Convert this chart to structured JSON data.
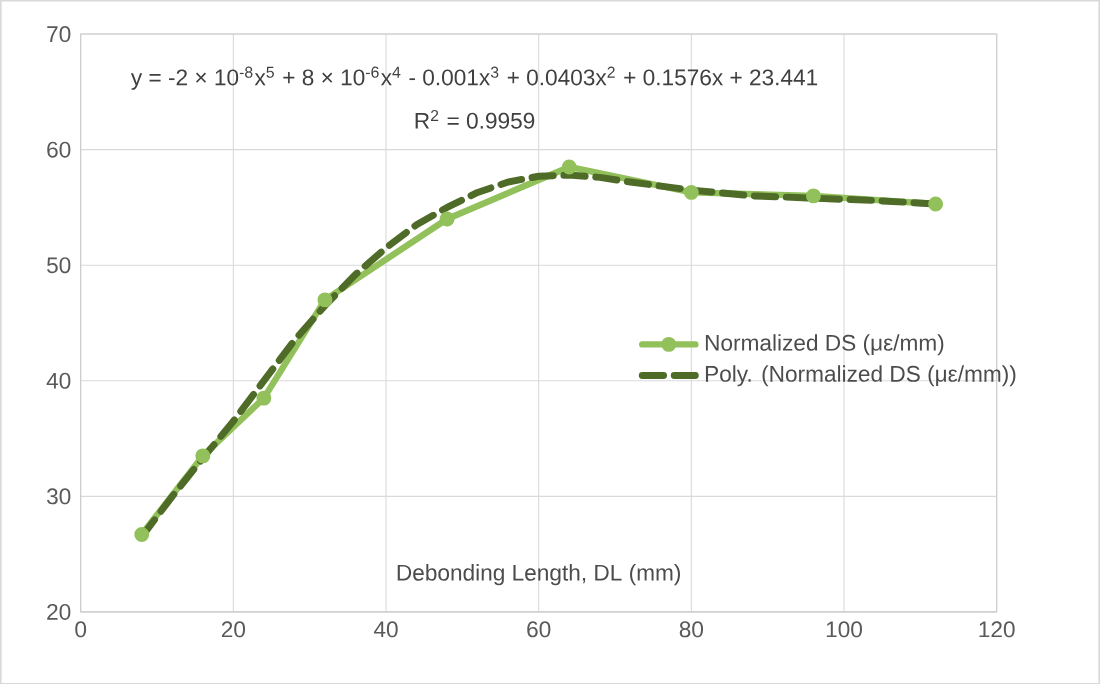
{
  "chart_data": {
    "type": "line",
    "xlabel": "Debonding Length, DL (mm)",
    "annotations": [
      "y = -2 × 10$^{-8}$x$^{5}$ + 8 × 10$^{-6}$x$^{4}$ - 0.001x$^{3}$ + 0.0403x$^{2}$ + 0.1576x + 23.441",
      "R$^{2}$ = 0.9959"
    ],
    "series": [
      {
        "name": "Normalized DS (με/mm)",
        "color": "#92c05a",
        "marker": "circle",
        "line_style": "solid",
        "x": [
          8,
          16,
          24,
          32,
          48,
          64,
          80,
          96,
          112
        ],
        "values": [
          26.7,
          33.5,
          38.5,
          47,
          54,
          58.5,
          56.3,
          56,
          55.3
        ]
      },
      {
        "name": "Poly. (Normalized DS (με/mm))",
        "color": "#4f6b28",
        "marker": "none",
        "line_style": "dashed",
        "x": [
          8,
          12,
          16,
          20,
          24,
          28,
          32,
          36,
          40,
          44,
          48,
          52,
          56,
          60,
          64,
          68,
          72,
          80,
          88,
          96,
          104,
          112
        ],
        "values": [
          26.5,
          30,
          33.3,
          36.5,
          40,
          43.5,
          46.5,
          49.2,
          51.5,
          53.5,
          55,
          56.3,
          57.2,
          57.7,
          57.8,
          57.6,
          57.2,
          56.5,
          56,
          55.8,
          55.6,
          55.3
        ]
      }
    ],
    "xlim": [
      0,
      120
    ],
    "xticks": [
      0,
      20,
      40,
      60,
      80,
      100,
      120
    ],
    "ylim": [
      20,
      70
    ],
    "yticks": [
      20,
      30,
      40,
      50,
      60,
      70
    ],
    "grid": true,
    "legend": "right"
  }
}
